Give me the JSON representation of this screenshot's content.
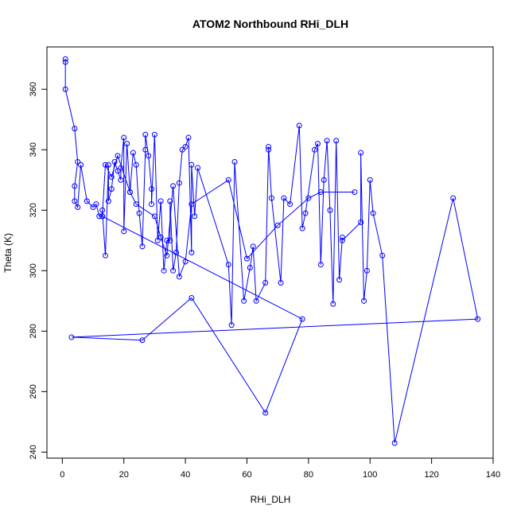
{
  "chart_data": {
    "type": "line",
    "title": "ATOM2 Northbound RHi_DLH",
    "xlabel": "RHi_DLH",
    "ylabel": "Theta (K)",
    "xlim": [
      -5,
      140
    ],
    "ylim": [
      238,
      374
    ],
    "xticks": [
      0,
      20,
      40,
      60,
      80,
      100,
      120,
      140
    ],
    "yticks": [
      240,
      260,
      280,
      300,
      320,
      340,
      360
    ],
    "series_color": "#0000ff",
    "grid": false,
    "x": [
      1,
      1,
      1,
      4,
      5,
      4,
      4,
      5,
      6,
      8,
      10,
      11,
      12,
      13,
      13,
      14,
      15,
      15,
      16,
      17,
      18,
      19,
      19,
      20,
      20,
      21,
      22,
      23,
      24,
      25,
      26,
      27,
      27,
      28,
      29,
      29,
      30,
      31,
      32,
      33,
      34,
      35,
      35,
      36,
      37,
      38,
      39,
      40,
      41,
      42,
      42,
      43,
      44,
      54,
      55,
      56,
      59,
      61,
      62,
      63,
      66,
      67,
      67,
      68,
      71,
      72,
      74,
      77,
      78,
      79,
      82,
      83,
      84,
      85,
      86,
      87,
      88,
      89,
      90,
      91,
      91,
      97,
      97,
      98,
      99,
      100,
      101,
      104,
      108,
      127,
      135,
      3,
      26,
      42,
      66,
      78,
      13,
      14,
      16,
      18,
      22,
      24,
      30,
      32,
      34,
      36,
      38,
      40,
      42,
      54,
      60,
      70,
      80,
      84,
      95
    ],
    "y": [
      370,
      369,
      360,
      347,
      336,
      328,
      323,
      321,
      335,
      323,
      321,
      322,
      318,
      318,
      320,
      305,
      335,
      323,
      327,
      336,
      333,
      330,
      334,
      344,
      313,
      342,
      326,
      339,
      335,
      319,
      308,
      340,
      345,
      338,
      327,
      322,
      345,
      310,
      323,
      300,
      310,
      310,
      323,
      300,
      306,
      329,
      340,
      341,
      344,
      306,
      335,
      318,
      334,
      302,
      282,
      336,
      290,
      301,
      308,
      290,
      296,
      340,
      341,
      324,
      296,
      324,
      322,
      348,
      314,
      319,
      340,
      342,
      302,
      330,
      343,
      320,
      289,
      343,
      297,
      311,
      310,
      316,
      339,
      290,
      300,
      330,
      319,
      305,
      243,
      324,
      284,
      278,
      277,
      291,
      253,
      284,
      318,
      335,
      331,
      338,
      326,
      322,
      318,
      311,
      305,
      328,
      298,
      303,
      322,
      330,
      304,
      315,
      324,
      326,
      326
    ]
  }
}
